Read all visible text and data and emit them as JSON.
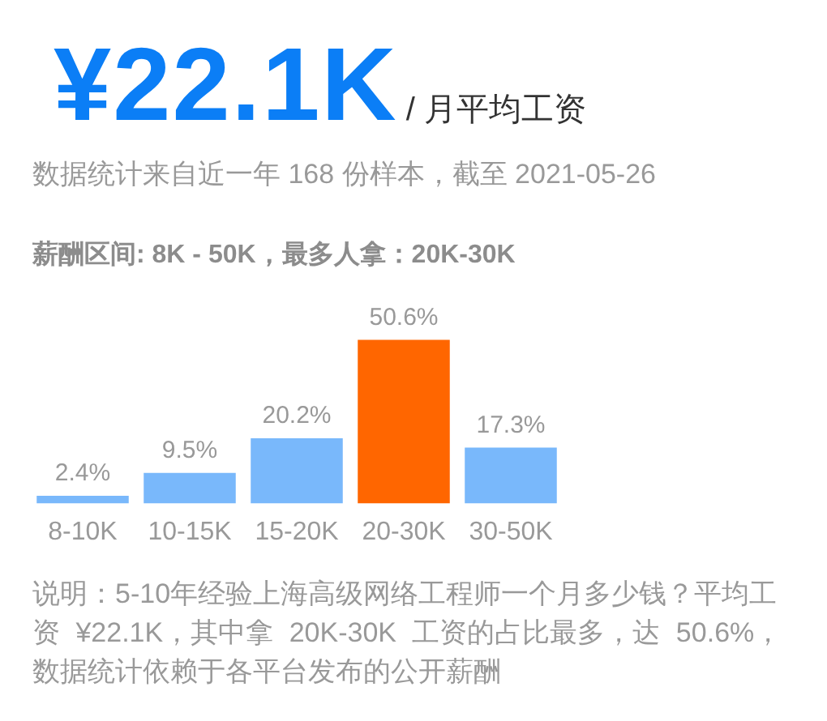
{
  "chart_data": {
    "type": "bar",
    "title": "¥22.1K",
    "subtitle": "/ 月平均工资",
    "annotations": [
      "数据统计来自近一年 168 份样本，截至 2021-05-26",
      "薪酬区间: 8K - 50K，最多人拿：20K-30K",
      "说明：5-10年经验上海高级网络工程师一个月多少钱？平均工资 ¥22.1K，其中拿 20K-30K 工资的占比最多，达 50.6%，数据统计依赖于各平台发布的公开薪酬"
    ],
    "categories": [
      "8-10K",
      "10-15K",
      "15-20K",
      "20-30K",
      "30-50K"
    ],
    "values": [
      2.4,
      9.5,
      20.2,
      50.6,
      17.3
    ],
    "colors": [
      "#79b8fb",
      "#79b8fb",
      "#79b8fb",
      "#ff6600",
      "#79b8fb"
    ],
    "value_labels": [
      "2.4%",
      "9.5%",
      "20.2%",
      "50.6%",
      "17.3%"
    ],
    "grid": false,
    "legend": false
  }
}
